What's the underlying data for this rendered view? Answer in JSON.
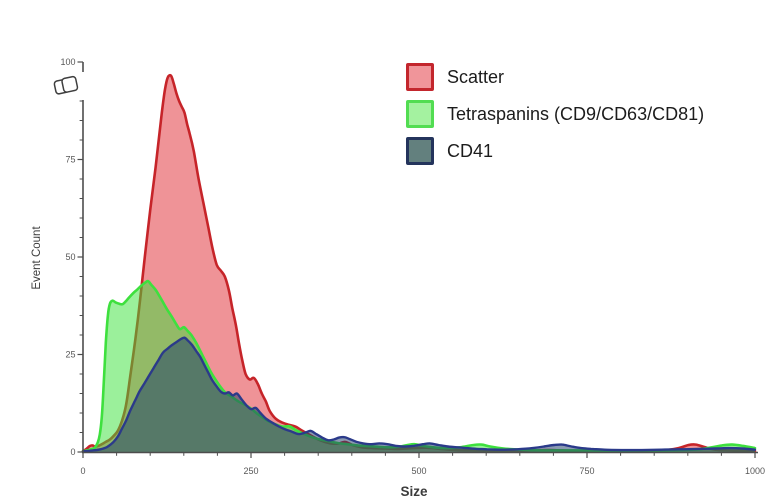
{
  "chart_data": {
    "type": "area",
    "title": "",
    "xlabel": "Size",
    "ylabel": "Event Count",
    "xlim": [
      0,
      1000
    ],
    "ylim": [
      0,
      100
    ],
    "x_ticks": [
      0,
      250,
      500,
      750,
      1000
    ],
    "y_ticks": [
      0,
      25,
      50,
      75,
      100
    ],
    "x_minor_step": 50,
    "y_minor_step": 5,
    "grid": false,
    "legend_position": "top-right",
    "series": [
      {
        "name": "Scatter",
        "fill": "rgba(222,25,35,0.47)",
        "stroke": "#c62429",
        "stroke_width": 2.6,
        "points": [
          [
            0,
            0.2
          ],
          [
            5,
            0.8
          ],
          [
            10,
            1.5
          ],
          [
            14,
            1.7
          ],
          [
            18,
            1.4
          ],
          [
            23,
            1.6
          ],
          [
            28,
            2.0
          ],
          [
            34,
            2.6
          ],
          [
            40,
            3.2
          ],
          [
            46,
            4.2
          ],
          [
            52,
            5.5
          ],
          [
            58,
            8
          ],
          [
            64,
            12
          ],
          [
            70,
            19
          ],
          [
            78,
            29
          ],
          [
            85,
            39
          ],
          [
            92,
            50
          ],
          [
            100,
            62
          ],
          [
            108,
            73
          ],
          [
            114,
            82
          ],
          [
            118,
            88
          ],
          [
            122,
            93
          ],
          [
            126,
            96
          ],
          [
            131,
            96.5
          ],
          [
            135,
            94.5
          ],
          [
            139,
            92
          ],
          [
            143,
            90
          ],
          [
            147,
            88.5
          ],
          [
            151,
            87
          ],
          [
            155,
            84
          ],
          [
            159,
            81.5
          ],
          [
            165,
            77
          ],
          [
            172,
            70
          ],
          [
            179,
            64
          ],
          [
            186,
            58
          ],
          [
            193,
            52
          ],
          [
            199,
            48
          ],
          [
            205,
            46.5
          ],
          [
            211,
            45
          ],
          [
            217,
            41.5
          ],
          [
            222,
            37
          ],
          [
            227,
            33
          ],
          [
            232,
            28
          ],
          [
            237,
            23.5
          ],
          [
            242,
            20
          ],
          [
            248,
            18.6
          ],
          [
            254,
            19
          ],
          [
            260,
            17.5
          ],
          [
            266,
            15
          ],
          [
            272,
            13
          ],
          [
            278,
            10.5
          ],
          [
            287,
            8.5
          ],
          [
            296,
            7.6
          ],
          [
            306,
            7
          ],
          [
            316,
            6.5
          ],
          [
            326,
            5.5
          ],
          [
            336,
            4.5
          ],
          [
            347,
            3.5
          ],
          [
            358,
            2.7
          ],
          [
            369,
            2.2
          ],
          [
            381,
            2.2
          ],
          [
            390,
            2.6
          ],
          [
            401,
            1.8
          ],
          [
            415,
            1.2
          ],
          [
            431,
            1
          ],
          [
            450,
            0.9
          ],
          [
            470,
            0.8
          ],
          [
            492,
            1
          ],
          [
            511,
            1.1
          ],
          [
            532,
            0.8
          ],
          [
            556,
            0.5
          ],
          [
            583,
            0.4
          ],
          [
            612,
            0.3
          ],
          [
            641,
            0.3
          ],
          [
            668,
            0.4
          ],
          [
            692,
            0.5
          ],
          [
            713,
            0.4
          ],
          [
            739,
            0.3
          ],
          [
            766,
            0.2
          ],
          [
            797,
            0.2
          ],
          [
            830,
            0.3
          ],
          [
            861,
            0.4
          ],
          [
            886,
            1
          ],
          [
            901,
            1.8
          ],
          [
            912,
            1.9
          ],
          [
            926,
            1.2
          ],
          [
            941,
            0.6
          ],
          [
            961,
            0.4
          ],
          [
            981,
            0.3
          ],
          [
            1000,
            0.2
          ]
        ]
      },
      {
        "name": "Tetraspanins (CD9/CD63/CD81)",
        "fill": "rgba(55,225,55,0.5)",
        "stroke": "#3ee03e",
        "stroke_width": 2.6,
        "points": [
          [
            0,
            0.2
          ],
          [
            8,
            0.5
          ],
          [
            14,
            0.8
          ],
          [
            18,
            1.2
          ],
          [
            22,
            2.5
          ],
          [
            25,
            4.5
          ],
          [
            28,
            9
          ],
          [
            31,
            18
          ],
          [
            34,
            28
          ],
          [
            37,
            35
          ],
          [
            40,
            38
          ],
          [
            44,
            38.8
          ],
          [
            49,
            38.3
          ],
          [
            54,
            38
          ],
          [
            59,
            37.9
          ],
          [
            64,
            38.7
          ],
          [
            69,
            39.7
          ],
          [
            75,
            40.8
          ],
          [
            81,
            41.7
          ],
          [
            87,
            42.7
          ],
          [
            93,
            43.5
          ],
          [
            97,
            43.8
          ],
          [
            102,
            42.8
          ],
          [
            108,
            41.6
          ],
          [
            113,
            40.2
          ],
          [
            119,
            38.4
          ],
          [
            125,
            36.6
          ],
          [
            131,
            35
          ],
          [
            138,
            33
          ],
          [
            144,
            31.5
          ],
          [
            150,
            32
          ],
          [
            156,
            31
          ],
          [
            162,
            29.8
          ],
          [
            169,
            27.8
          ],
          [
            176,
            25.4
          ],
          [
            183,
            23
          ],
          [
            190,
            20.6
          ],
          [
            197,
            18.6
          ],
          [
            205,
            16.6
          ],
          [
            212,
            15.2
          ],
          [
            221,
            14.2
          ],
          [
            231,
            13
          ],
          [
            241,
            12.1
          ],
          [
            251,
            11
          ],
          [
            261,
            9.6
          ],
          [
            273,
            8.2
          ],
          [
            285,
            7.2
          ],
          [
            297,
            6.5
          ],
          [
            307,
            6.6
          ],
          [
            317,
            5.6
          ],
          [
            329,
            4.6
          ],
          [
            341,
            3.8
          ],
          [
            353,
            3.2
          ],
          [
            365,
            2.8
          ],
          [
            379,
            2.3
          ],
          [
            393,
            2
          ],
          [
            409,
            1.7
          ],
          [
            425,
            1.5
          ],
          [
            441,
            1.3
          ],
          [
            457,
            1.2
          ],
          [
            471,
            1.4
          ],
          [
            483,
            1.8
          ],
          [
            493,
            2
          ],
          [
            505,
            1.6
          ],
          [
            521,
            1.2
          ],
          [
            541,
            1
          ],
          [
            561,
            1.2
          ],
          [
            581,
            1.8
          ],
          [
            593,
            1.9
          ],
          [
            606,
            1.4
          ],
          [
            626,
            0.9
          ],
          [
            651,
            0.6
          ],
          [
            681,
            0.4
          ],
          [
            711,
            0.4
          ],
          [
            741,
            0.4
          ],
          [
            771,
            0.3
          ],
          [
            801,
            0.3
          ],
          [
            831,
            0.4
          ],
          [
            861,
            0.4
          ],
          [
            891,
            0.5
          ],
          [
            916,
            0.7
          ],
          [
            936,
            1.2
          ],
          [
            951,
            1.7
          ],
          [
            966,
            1.9
          ],
          [
            981,
            1.6
          ],
          [
            1000,
            1
          ]
        ]
      },
      {
        "name": "CD41",
        "fill": "rgba(30,62,105,0.52)",
        "stroke": "#2b3a8a",
        "stroke_width": 2.4,
        "points": [
          [
            0,
            0.2
          ],
          [
            15,
            0.4
          ],
          [
            26,
            0.7
          ],
          [
            36,
            1.3
          ],
          [
            45,
            2.5
          ],
          [
            52,
            4
          ],
          [
            58,
            6
          ],
          [
            64,
            8
          ],
          [
            70,
            10.5
          ],
          [
            77,
            13
          ],
          [
            84,
            15.5
          ],
          [
            91,
            17.5
          ],
          [
            98,
            19.5
          ],
          [
            105,
            21.5
          ],
          [
            112,
            23.5
          ],
          [
            119,
            25.5
          ],
          [
            126,
            26.5
          ],
          [
            133,
            27.5
          ],
          [
            140,
            28.3
          ],
          [
            146,
            29
          ],
          [
            151,
            29.3
          ],
          [
            156,
            28.6
          ],
          [
            162,
            27.5
          ],
          [
            168,
            26
          ],
          [
            174,
            24.5
          ],
          [
            180,
            22.5
          ],
          [
            186,
            20.5
          ],
          [
            192,
            18.5
          ],
          [
            198,
            17
          ],
          [
            205,
            15.5
          ],
          [
            211,
            15
          ],
          [
            217,
            15.3
          ],
          [
            223,
            14.5
          ],
          [
            229,
            15
          ],
          [
            236,
            13.5
          ],
          [
            243,
            12
          ],
          [
            250,
            11
          ],
          [
            257,
            11.3
          ],
          [
            264,
            10
          ],
          [
            272,
            8.6
          ],
          [
            281,
            7.6
          ],
          [
            291,
            6.6
          ],
          [
            301,
            5.8
          ],
          [
            311,
            5.2
          ],
          [
            321,
            4.6
          ],
          [
            331,
            5
          ],
          [
            339,
            5.4
          ],
          [
            347,
            4.6
          ],
          [
            357,
            3.6
          ],
          [
            365,
            3
          ],
          [
            373,
            3.2
          ],
          [
            381,
            3.7
          ],
          [
            389,
            3.8
          ],
          [
            397,
            3.3
          ],
          [
            407,
            2.6
          ],
          [
            417,
            2.2
          ],
          [
            429,
            2
          ],
          [
            441,
            2.2
          ],
          [
            453,
            2
          ],
          [
            465,
            1.6
          ],
          [
            479,
            1.4
          ],
          [
            493,
            1.6
          ],
          [
            506,
            2
          ],
          [
            516,
            2.2
          ],
          [
            529,
            1.8
          ],
          [
            543,
            1.4
          ],
          [
            557,
            1.2
          ],
          [
            571,
            1
          ],
          [
            586,
            0.8
          ],
          [
            601,
            0.7
          ],
          [
            621,
            0.6
          ],
          [
            646,
            0.7
          ],
          [
            669,
            1
          ],
          [
            686,
            1.4
          ],
          [
            701,
            1.8
          ],
          [
            713,
            1.9
          ],
          [
            727,
            1.4
          ],
          [
            741,
            1
          ],
          [
            756,
            0.8
          ],
          [
            776,
            0.6
          ],
          [
            801,
            0.5
          ],
          [
            831,
            0.5
          ],
          [
            861,
            0.6
          ],
          [
            891,
            0.7
          ],
          [
            916,
            0.8
          ],
          [
            941,
            0.9
          ],
          [
            961,
            1
          ],
          [
            981,
            0.9
          ],
          [
            1000,
            0.6
          ]
        ]
      }
    ]
  },
  "legend": {
    "items": [
      {
        "fill": "#f0959a",
        "border": "#c3262d"
      },
      {
        "fill": "#a4f2a0",
        "border": "#52dd52"
      },
      {
        "fill": "#63807e",
        "border": "#24345c"
      }
    ]
  },
  "toolbar": {
    "copy_icon": "copy-icon"
  },
  "colors": {
    "axis": "#4d4d4d",
    "tick_label": "#575757",
    "axis_title": "#3c3c3c",
    "background": "#ffffff"
  }
}
